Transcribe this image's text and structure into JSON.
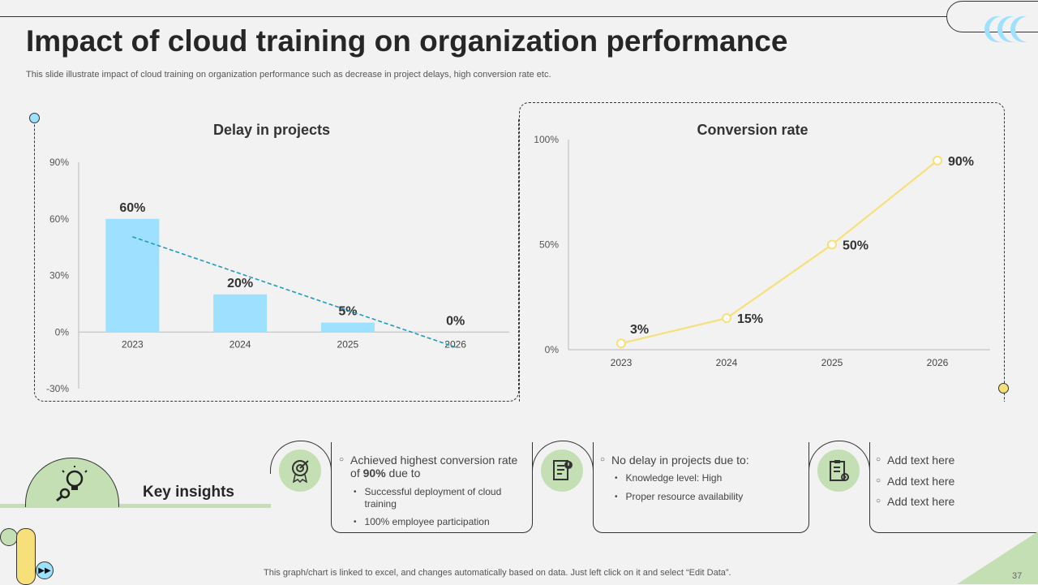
{
  "header": {
    "title": "Impact of cloud training on organization performance",
    "subtitle": "This slide illustrate impact of cloud training on organization performance such as decrease in project delays, high conversion rate etc."
  },
  "chart_data": [
    {
      "type": "bar",
      "title": "Delay in projects",
      "categories": [
        "2023",
        "2024",
        "2025",
        "2026"
      ],
      "values": [
        60,
        20,
        5,
        0
      ],
      "value_labels": [
        "60%",
        "20%",
        "5%",
        "0%"
      ],
      "yticks": [
        "-30%",
        "0%",
        "30%",
        "60%",
        "90%"
      ],
      "ytick_values": [
        -30,
        0,
        30,
        60,
        90
      ],
      "ylim": [
        -30,
        90
      ],
      "trendline": "linear",
      "color": "#9de0ff",
      "trend_color": "#1f9bc0"
    },
    {
      "type": "line",
      "title": "Conversion rate",
      "categories": [
        "2023",
        "2024",
        "2025",
        "2026"
      ],
      "values": [
        3,
        15,
        50,
        90
      ],
      "value_labels": [
        "3%",
        "15%",
        "50%",
        "90%"
      ],
      "yticks": [
        "0%",
        "50%",
        "100%"
      ],
      "ytick_values": [
        0,
        50,
        100
      ],
      "ylim": [
        0,
        100
      ],
      "color": "#f7e07a"
    }
  ],
  "insights": {
    "label": "Key insights",
    "cards": [
      {
        "icon": "target-award-icon",
        "main": "Achieved highest conversion rate of ",
        "main_bold": "90%",
        "main_tail": "due to",
        "subs": [
          "Successful deployment of cloud training",
          "100% employee participation"
        ]
      },
      {
        "icon": "document-alert-icon",
        "main": "No delay in projects due to:",
        "subs": [
          "Knowledge level: High",
          "Proper resource availability"
        ]
      },
      {
        "icon": "clipboard-gear-icon",
        "items": [
          "Add text here",
          "Add text here",
          "Add text here"
        ]
      }
    ]
  },
  "footer": {
    "note": "This graph/chart is linked to excel,  and changes automatically based on data. Just left click on it and select “Edit Data”.",
    "page": "37"
  }
}
